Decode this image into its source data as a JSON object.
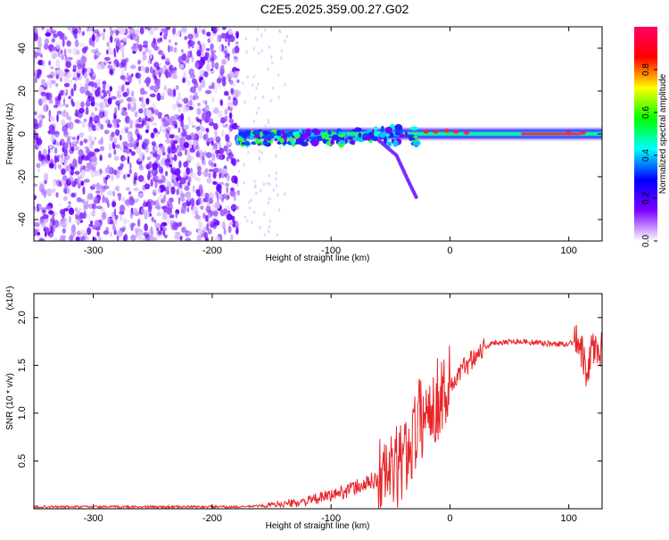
{
  "title": "C2E5.2025.359.00.27.G02",
  "chart_data": [
    {
      "type": "heatmap",
      "name": "spectrogram",
      "xlabel": "Height of straight line (km)",
      "ylabel": "Frequency (Hz)",
      "xlim": [
        -350,
        128
      ],
      "ylim": [
        -50,
        50
      ],
      "xticks": [
        -300,
        -200,
        -100,
        0,
        100
      ],
      "yticks": [
        -40,
        -20,
        0,
        20,
        40
      ],
      "colorbar": {
        "label": "Normalized spectral amplitude",
        "range": [
          0,
          1
        ],
        "ticks": [
          "0.0",
          "0.2",
          "0.4",
          "0.6",
          "0.8"
        ],
        "colors": [
          "#ffffff",
          "#7b00ff",
          "#0000ff",
          "#00ffff",
          "#00ff00",
          "#ffff00",
          "#ff0000",
          "#ff0066"
        ]
      },
      "features": [
        {
          "label": "noise region",
          "x_range": [
            -350,
            -178
          ],
          "freq_range": [
            -50,
            50
          ],
          "amplitude": 0.1
        },
        {
          "label": "signal trace",
          "x_range": [
            -178,
            128
          ],
          "freq_center": 0,
          "amplitude": 0.9
        },
        {
          "label": "branch",
          "points": [
            [
              -60,
              -3
            ],
            [
              -45,
              -10
            ],
            [
              -35,
              -22
            ],
            [
              -28,
              -30
            ]
          ]
        }
      ]
    },
    {
      "type": "line",
      "name": "snr",
      "xlabel": "Height of straight line (km)",
      "ylabel": "SNR (10 * v/v)",
      "yscale_label": "(x10⁴)",
      "xlim": [
        -350,
        128
      ],
      "ylim": [
        0,
        2.25
      ],
      "xticks": [
        -300,
        -200,
        -100,
        0,
        100
      ],
      "yticks": [
        0.5,
        1.0,
        1.5,
        2.0
      ],
      "color": "#e8262a",
      "series": [
        {
          "x": [
            -350,
            -300,
            -250,
            -200,
            -175,
            -160,
            -150,
            -140,
            -130,
            -120,
            -110,
            -100,
            -90,
            -80,
            -70,
            -60,
            -50,
            -45,
            -40,
            -35,
            -30,
            -25,
            -20,
            -15,
            -10,
            -5,
            0,
            5,
            10,
            20,
            30,
            40,
            50,
            60,
            70,
            80,
            90,
            100,
            105,
            110,
            113,
            115,
            118,
            120,
            125,
            128
          ],
          "y": [
            0.02,
            0.02,
            0.02,
            0.02,
            0.02,
            0.03,
            0.04,
            0.05,
            0.06,
            0.08,
            0.11,
            0.14,
            0.18,
            0.22,
            0.26,
            0.32,
            0.38,
            0.42,
            0.5,
            0.62,
            0.8,
            0.95,
            1.0,
            1.1,
            1.15,
            1.25,
            1.3,
            1.35,
            1.45,
            1.6,
            1.7,
            1.74,
            1.75,
            1.75,
            1.74,
            1.73,
            1.72,
            1.73,
            1.75,
            1.7,
            1.5,
            1.3,
            1.6,
            1.7,
            1.64,
            1.65
          ]
        }
      ]
    }
  ]
}
